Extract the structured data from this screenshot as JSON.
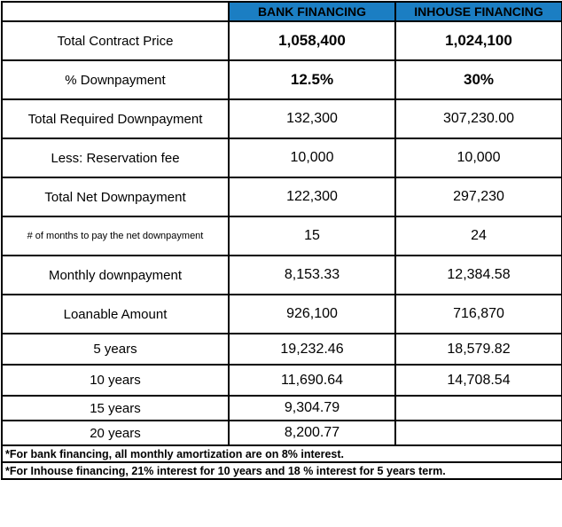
{
  "colors": {
    "header_bg": "#1B7EC3",
    "border": "#000000"
  },
  "header": {
    "blank": "",
    "bank": "BANK FINANCING",
    "inhouse": "INHOUSE FINANCING"
  },
  "rows": [
    {
      "label": "Total Contract Price",
      "bank": "1,058,400",
      "inhouse": "1,024,100"
    },
    {
      "label": "% Downpayment",
      "bank": "12.5%",
      "inhouse": "30%"
    },
    {
      "label": "Total Required Downpayment",
      "bank": "132,300",
      "inhouse": "307,230.00"
    },
    {
      "label": "Less: Reservation fee",
      "bank": "10,000",
      "inhouse": "10,000"
    },
    {
      "label": "Total Net Downpayment",
      "bank": "122,300",
      "inhouse": "297,230"
    },
    {
      "label": "# of months to pay the net downpayment",
      "bank": "15",
      "inhouse": "24"
    },
    {
      "label": "Monthly downpayment",
      "bank": "8,153.33",
      "inhouse": "12,384.58"
    },
    {
      "label": "Loanable Amount",
      "bank": "926,100",
      "inhouse": "716,870"
    },
    {
      "label": "5 years",
      "bank": "19,232.46",
      "inhouse": "18,579.82"
    },
    {
      "label": "10 years",
      "bank": "11,690.64",
      "inhouse": "14,708.54"
    },
    {
      "label": "15 years",
      "bank": "9,304.79",
      "inhouse": ""
    },
    {
      "label": "20 years",
      "bank": "8,200.77",
      "inhouse": ""
    }
  ],
  "notes": [
    "*For bank financing, all monthly amortization are on 8% interest.",
    "*For Inhouse financing, 21% interest for 10 years and 18 % interest for 5 years term."
  ]
}
